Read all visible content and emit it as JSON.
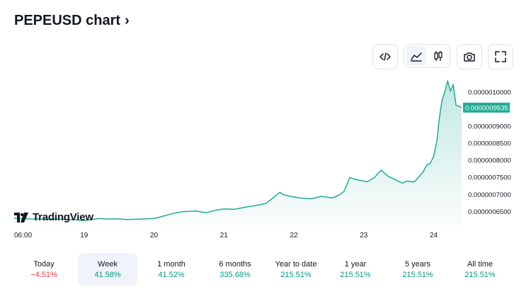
{
  "header": {
    "title": "PEPEUSD chart",
    "chevron": "›"
  },
  "toolbar": {
    "icons": [
      "embed-code-icon",
      "area-chart-icon",
      "candlestick-icon",
      "camera-icon",
      "fullscreen-icon"
    ],
    "active": "area-chart-icon"
  },
  "logo": {
    "text": "TradingView"
  },
  "colors": {
    "line": "#22ab94",
    "fill": "#22ab94",
    "price_tag": "#22ab94",
    "positive": "#089981",
    "negative": "#f23645",
    "active_tab_bg": "#f0f3fa"
  },
  "chart_data": {
    "type": "area",
    "symbol": "PEPEUSD",
    "x_ticks": [
      "06:00",
      "19",
      "20",
      "21",
      "22",
      "23",
      "24"
    ],
    "y_ticks": [
      "0.0000010000",
      "0.0000009000",
      "0.0000008500",
      "0.0000008000",
      "0.0000007500",
      "0.0000007000",
      "0.0000006500"
    ],
    "last_price": "0.0000009535",
    "last_value": 9.535e-07,
    "ylim": [
      6.08e-07,
      1.051e-06
    ],
    "x_domain": [
      0,
      6.4
    ],
    "series": [
      {
        "x": [
          0,
          0.2,
          0.4,
          0.6,
          0.75,
          0.9,
          1.0,
          1.2,
          1.35,
          1.5,
          1.6,
          1.8,
          2.0,
          2.1,
          2.25,
          2.4,
          2.6,
          2.75,
          2.9,
          3.0,
          3.15,
          3.3,
          3.45,
          3.6,
          3.7,
          3.8,
          3.85,
          3.95,
          4.1,
          4.25,
          4.4,
          4.55,
          4.65,
          4.72,
          4.8,
          4.9,
          5.05,
          5.15,
          5.25,
          5.35,
          5.45,
          5.55,
          5.62,
          5.72,
          5.78,
          5.85,
          5.9,
          5.95,
          6.0,
          6.05,
          6.08,
          6.12,
          6.16,
          6.2,
          6.24,
          6.28,
          6.32,
          6.36,
          6.4
        ],
        "y": [
          6.29e-07,
          6.27e-07,
          6.26e-07,
          6.27e-07,
          6.25e-07,
          6.24e-07,
          6.22e-07,
          6.28e-07,
          6.26e-07,
          6.27e-07,
          6.25e-07,
          6.26e-07,
          6.28e-07,
          6.33e-07,
          6.42e-07,
          6.48e-07,
          6.5e-07,
          6.45e-07,
          6.53e-07,
          6.56e-07,
          6.55e-07,
          6.61e-07,
          6.66e-07,
          6.72e-07,
          6.88e-07,
          7.05e-07,
          6.98e-07,
          6.93e-07,
          6.88e-07,
          6.86e-07,
          6.93e-07,
          6.88e-07,
          6.97e-07,
          7.08e-07,
          7.48e-07,
          7.42e-07,
          7.36e-07,
          7.48e-07,
          7.7e-07,
          7.52e-07,
          7.42e-07,
          7.32e-07,
          7.38e-07,
          7.35e-07,
          7.48e-07,
          7.65e-07,
          7.85e-07,
          7.9e-07,
          8.1e-07,
          8.6e-07,
          9.2e-07,
          9.75e-07,
          1e-06,
          1.032e-06,
          1.002e-06,
          1.021e-06,
          9.6e-07,
          9.58e-07,
          9.535e-07
        ]
      }
    ]
  },
  "ranges": [
    {
      "label": "Today",
      "value": "−4.51%",
      "sign": "neg",
      "active": false
    },
    {
      "label": "Week",
      "value": "41.58%",
      "sign": "pos",
      "active": true
    },
    {
      "label": "1 month",
      "value": "41.52%",
      "sign": "pos",
      "active": false
    },
    {
      "label": "6 months",
      "value": "335.68%",
      "sign": "pos",
      "active": false
    },
    {
      "label": "Year to date",
      "value": "215.51%",
      "sign": "pos",
      "active": false
    },
    {
      "label": "1 year",
      "value": "215.51%",
      "sign": "pos",
      "active": false
    },
    {
      "label": "5 years",
      "value": "215.51%",
      "sign": "pos",
      "active": false
    },
    {
      "label": "All time",
      "value": "215.51%",
      "sign": "pos",
      "active": false
    }
  ]
}
